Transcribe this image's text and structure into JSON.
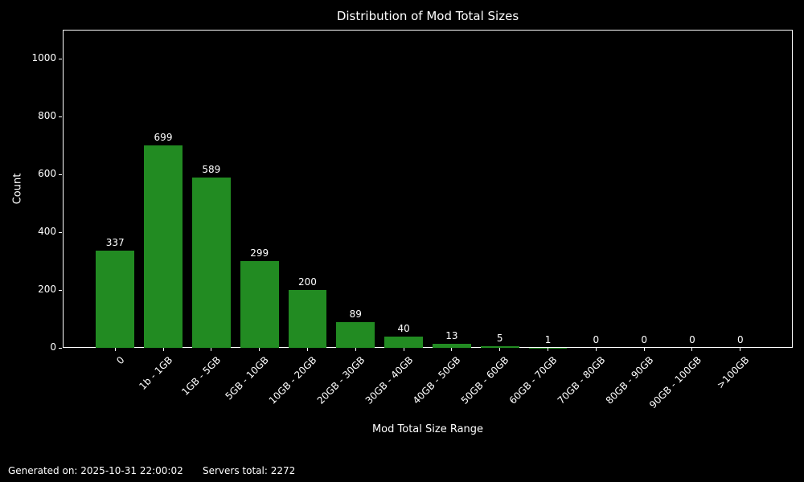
{
  "chart_data": {
    "type": "bar",
    "title": "Distribution of Mod Total Sizes",
    "xlabel": "Mod Total Size Range",
    "ylabel": "Count",
    "categories": [
      "0",
      "1b - 1GB",
      "1GB - 5GB",
      "5GB - 10GB",
      "10GB - 20GB",
      "20GB - 30GB",
      "30GB - 40GB",
      "40GB - 50GB",
      "50GB - 60GB",
      "60GB - 70GB",
      "70GB - 80GB",
      "80GB - 90GB",
      "90GB - 100GB",
      ">100GB"
    ],
    "values": [
      337,
      699,
      589,
      299,
      200,
      89,
      40,
      13,
      5,
      1,
      0,
      0,
      0,
      0
    ],
    "yticks": [
      0,
      200,
      400,
      600,
      800,
      1000
    ],
    "ylim": [
      0,
      1100
    ],
    "bar_labels_shown": true,
    "grid": false,
    "legend": false,
    "colors": {
      "bar": "#228B22",
      "background": "#000000",
      "text": "#ffffff",
      "spine": "#ffffff"
    }
  },
  "footer": {
    "generated_label": "Generated on: 2025-10-31 22:00:02",
    "servers_total_label": "Servers total: 2272"
  }
}
